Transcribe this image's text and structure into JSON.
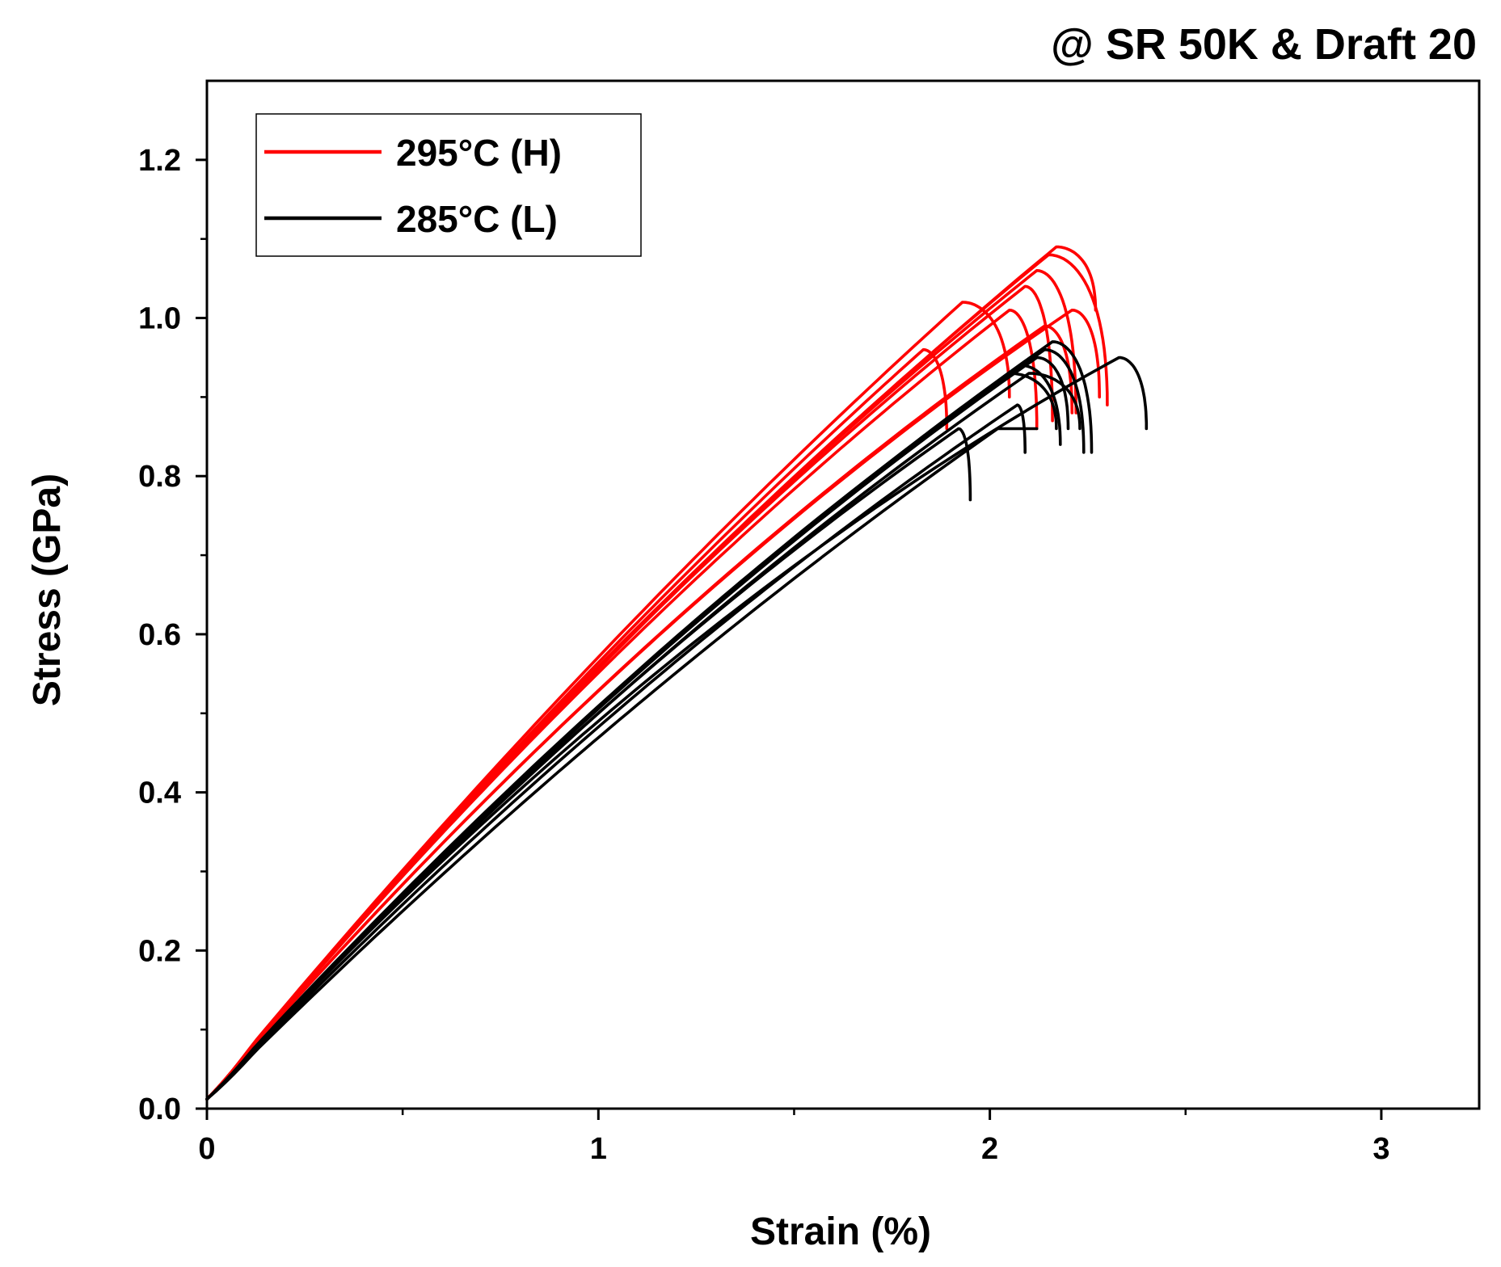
{
  "chart_data": {
    "type": "line",
    "title": "@ SR 50K & Draft 20",
    "xlabel": "Strain (%)",
    "ylabel": "Stress (GPa)",
    "xlim": [
      0,
      3.25
    ],
    "ylim": [
      0,
      1.3
    ],
    "xticks": [
      0,
      1,
      2,
      3
    ],
    "xtick_labels": [
      "0",
      "1",
      "2",
      "3"
    ],
    "yticks": [
      0.0,
      0.2,
      0.4,
      0.6,
      0.8,
      1.0,
      1.2
    ],
    "ytick_labels": [
      "0.0",
      "0.2",
      "0.4",
      "0.6",
      "0.8",
      "1.0",
      "1.2"
    ],
    "grid": false,
    "legend_position": "top-left",
    "groups": [
      {
        "name": "295°C (H)",
        "color": "#ff0000",
        "specimens": [
          {
            "k": 0.59,
            "c": 0.6,
            "peak_strain": 2.17,
            "peak_stress": 1.09,
            "break_strain": 2.27,
            "break_stress": 1.01
          },
          {
            "k": 0.595,
            "c": 0.6,
            "peak_strain": 2.15,
            "peak_stress": 1.08,
            "break_strain": 2.3,
            "break_stress": 0.89
          },
          {
            "k": 0.6,
            "c": 0.58,
            "peak_strain": 2.12,
            "peak_stress": 1.06,
            "break_strain": 2.22,
            "break_stress": 0.88
          },
          {
            "k": 0.6,
            "c": 0.57,
            "peak_strain": 2.09,
            "peak_stress": 1.04,
            "break_strain": 2.16,
            "break_stress": 0.87
          },
          {
            "k": 0.605,
            "c": 0.62,
            "peak_strain": 1.93,
            "peak_stress": 1.02,
            "break_strain": 2.05,
            "break_stress": 0.9
          },
          {
            "k": 0.595,
            "c": 0.6,
            "peak_strain": 2.05,
            "peak_stress": 1.01,
            "break_strain": 2.12,
            "break_stress": 0.86
          },
          {
            "k": 0.6,
            "c": 0.6,
            "peak_strain": 1.83,
            "peak_stress": 0.96,
            "break_strain": 1.89,
            "break_stress": 0.86
          },
          {
            "k": 0.575,
            "c": 0.62,
            "peak_strain": 2.21,
            "peak_stress": 1.01,
            "break_strain": 2.28,
            "break_stress": 0.9
          },
          {
            "k": 0.575,
            "c": 0.6,
            "peak_strain": 2.14,
            "peak_stress": 0.99,
            "break_strain": 2.21,
            "break_stress": 0.88
          }
        ]
      },
      {
        "name": "285°C (L)",
        "color": "#000000",
        "specimens": [
          {
            "k": 0.54,
            "c": 0.65,
            "peak_strain": 2.33,
            "peak_stress": 0.95,
            "break_strain": 2.4,
            "break_stress": 0.86
          },
          {
            "k": 0.545,
            "c": 0.63,
            "peak_strain": 2.16,
            "peak_stress": 0.97,
            "break_strain": 2.26,
            "break_stress": 0.83
          },
          {
            "k": 0.545,
            "c": 0.62,
            "peak_strain": 2.14,
            "peak_stress": 0.96,
            "break_strain": 2.24,
            "break_stress": 0.83
          },
          {
            "k": 0.545,
            "c": 0.63,
            "peak_strain": 2.12,
            "peak_stress": 0.95,
            "break_strain": 2.2,
            "break_stress": 0.86
          },
          {
            "k": 0.545,
            "c": 0.62,
            "peak_strain": 2.05,
            "peak_stress": 0.93,
            "break_strain": 2.17,
            "break_stress": 0.86
          },
          {
            "k": 0.54,
            "c": 0.62,
            "peak_strain": 2.1,
            "peak_stress": 0.93,
            "break_strain": 2.23,
            "break_stress": 0.86
          },
          {
            "k": 0.52,
            "c": 0.63,
            "peak_strain": 2.07,
            "peak_stress": 0.89,
            "break_strain": 2.09,
            "break_stress": 0.83
          },
          {
            "k": 0.5,
            "c": 0.66,
            "peak_strain": 2.02,
            "peak_stress": 0.86,
            "break_strain": 2.12,
            "break_stress": 0.86
          },
          {
            "k": 0.545,
            "c": 0.62,
            "peak_strain": 1.92,
            "peak_stress": 0.86,
            "break_strain": 1.95,
            "break_stress": 0.77
          },
          {
            "k": 0.55,
            "c": 0.62,
            "peak_strain": 2.08,
            "peak_stress": 0.94,
            "break_strain": 2.18,
            "break_stress": 0.84
          }
        ]
      }
    ]
  }
}
